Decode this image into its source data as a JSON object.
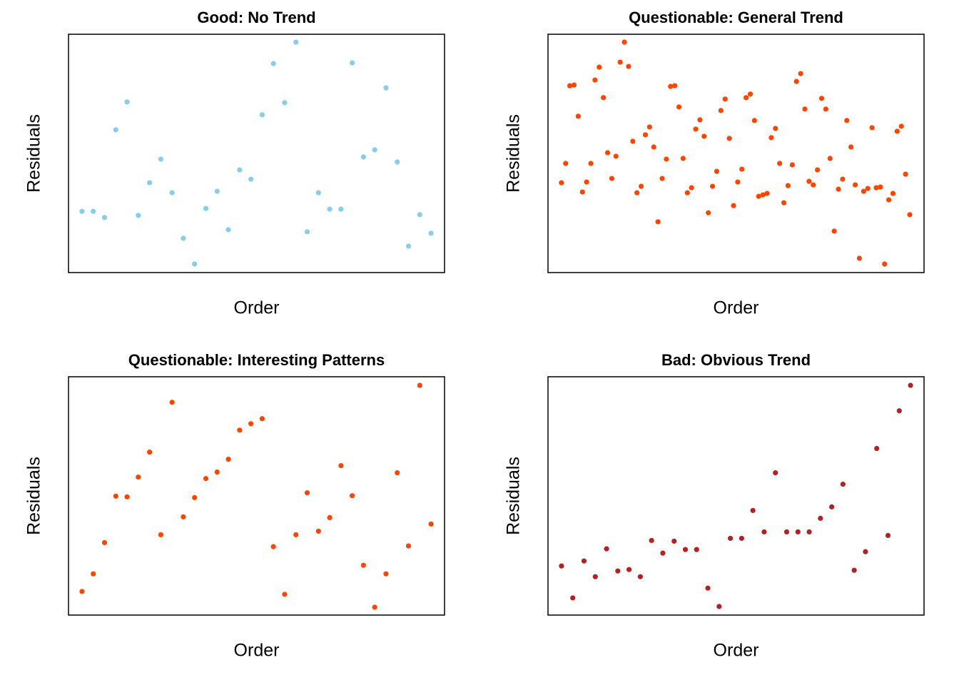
{
  "chart_data": [
    {
      "type": "scatter",
      "title": "Good: No Trend",
      "x_label": "Order",
      "y_label": "Residuals",
      "color": "#87ceeb",
      "xlim": [
        -0.2,
        33.2
      ],
      "ylim": [
        0,
        100
      ],
      "x": [
        1,
        2,
        3,
        4,
        5,
        6,
        7,
        8,
        9,
        10,
        11,
        12,
        13,
        14,
        15,
        16,
        17,
        18,
        19,
        20,
        21,
        22,
        23,
        24,
        25,
        26,
        27,
        28,
        29,
        30,
        31,
        32
      ],
      "values": [
        25.7,
        25.7,
        23.1,
        59.9,
        71.6,
        24.0,
        37.7,
        47.6,
        33.5,
        14.4,
        3.6,
        26.9,
        34.1,
        18.0,
        43.1,
        39.2,
        66.2,
        87.7,
        71.3,
        96.7,
        17.1,
        33.5,
        26.6,
        26.6,
        88.0,
        48.5,
        51.5,
        77.5,
        46.4,
        11.1,
        24.3,
        16.5
      ]
    },
    {
      "type": "scatter",
      "title": "Questionable: General Trend",
      "x_label": "Order",
      "y_label": "Residuals",
      "color": "#ff4500",
      "xlim": [
        -2.2,
        87.4
      ],
      "ylim": [
        0,
        100
      ],
      "x": [
        1,
        2,
        3,
        4,
        5,
        6,
        7,
        8,
        9,
        10,
        11,
        12,
        13,
        14,
        15,
        16,
        17,
        18,
        19,
        20,
        21,
        22,
        23,
        24,
        25,
        26,
        27,
        28,
        29,
        30,
        31,
        32,
        33,
        34,
        35,
        36,
        37,
        38,
        39,
        40,
        41,
        42,
        43,
        44,
        45,
        46,
        47,
        48,
        49,
        50,
        51,
        52,
        53,
        54,
        55,
        56,
        57,
        58,
        59,
        60,
        61,
        62,
        63,
        64,
        65,
        66,
        67,
        68,
        69,
        70,
        71,
        72,
        73,
        74,
        75,
        76,
        77,
        78,
        79,
        80,
        81,
        82,
        83,
        84
      ],
      "values": [
        37.7,
        45.8,
        78.4,
        78.7,
        65.6,
        33.8,
        38.0,
        45.8,
        80.8,
        86.2,
        73.4,
        50.3,
        39.5,
        48.8,
        88.3,
        96.7,
        86.5,
        55.1,
        33.5,
        36.2,
        57.8,
        61.1,
        52.7,
        21.3,
        39.5,
        47.6,
        78.1,
        78.4,
        69.5,
        47.9,
        33.5,
        35.6,
        60.2,
        64.1,
        57.2,
        25.1,
        36.2,
        42.5,
        68.0,
        72.8,
        56.3,
        28.1,
        38.0,
        43.4,
        73.4,
        74.9,
        63.8,
        32.0,
        32.6,
        33.2,
        56.6,
        60.5,
        45.8,
        29.3,
        36.5,
        45.2,
        80.2,
        83.5,
        68.6,
        38.3,
        36.8,
        43.1,
        73.1,
        68.6,
        47.9,
        17.4,
        35.0,
        39.2,
        63.8,
        52.7,
        36.8,
        6.0,
        34.1,
        35.3,
        60.8,
        35.6,
        35.9,
        3.6,
        30.5,
        33.2,
        59.3,
        61.4,
        41.3,
        24.3
      ]
    },
    {
      "type": "scatter",
      "title": "Questionable: Interesting Patterns",
      "x_label": "Order",
      "y_label": "Residuals",
      "color": "#ff4500",
      "xlim": [
        -0.2,
        33.2
      ],
      "ylim": [
        0,
        100
      ],
      "x": [
        1,
        2,
        3,
        4,
        5,
        6,
        7,
        8,
        9,
        10,
        11,
        12,
        13,
        14,
        15,
        16,
        17,
        18,
        19,
        20,
        21,
        22,
        23,
        24,
        25,
        26,
        27,
        28,
        29,
        30,
        31,
        32
      ],
      "values": [
        9.9,
        17.3,
        30.4,
        49.9,
        49.6,
        57.9,
        68.4,
        33.7,
        89.3,
        41.2,
        49.3,
        57.3,
        60.0,
        65.4,
        77.6,
        80.3,
        82.4,
        28.7,
        8.7,
        33.7,
        51.3,
        35.2,
        40.9,
        62.7,
        50.1,
        20.9,
        3.3,
        17.3,
        59.7,
        29.0,
        96.4,
        38.2
      ]
    },
    {
      "type": "scatter",
      "title": "Bad: Obvious Trend",
      "x_label": "Order",
      "y_label": "Residuals",
      "color": "#b22222",
      "xlim": [
        -0.2,
        33.2
      ],
      "ylim": [
        0,
        100
      ],
      "x": [
        1,
        2,
        3,
        4,
        5,
        6,
        7,
        8,
        9,
        10,
        11,
        12,
        13,
        14,
        15,
        16,
        17,
        18,
        19,
        20,
        21,
        22,
        23,
        24,
        25,
        26,
        27,
        28,
        29,
        30,
        31,
        32
      ],
      "values": [
        20.6,
        7.2,
        22.7,
        16.1,
        27.8,
        18.5,
        19.1,
        16.1,
        31.3,
        26.0,
        31.0,
        27.5,
        27.5,
        11.3,
        3.6,
        32.2,
        32.2,
        43.9,
        34.9,
        59.7,
        34.9,
        34.9,
        34.9,
        40.6,
        45.4,
        54.9,
        18.8,
        26.6,
        69.9,
        33.4,
        85.7,
        96.4
      ]
    }
  ]
}
